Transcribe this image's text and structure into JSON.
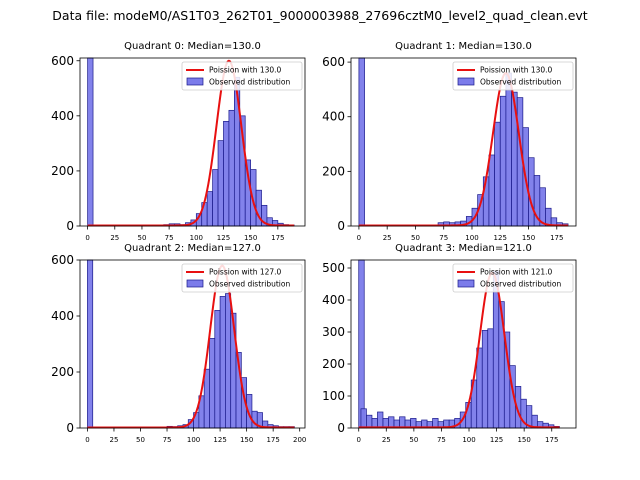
{
  "figure_title": "Data file: modeM0/AS1T03_262T01_9000003988_27696cztM0_level2_quad_clean.evt",
  "colors": {
    "bar_fill": "#7b7bea",
    "bar_edge": "#1a1a8a",
    "curve": "#e81010"
  },
  "chart_data": [
    {
      "type": "bar",
      "title": "Quadrant 0: Median=130.0",
      "xlim": [
        -7,
        200
      ],
      "ylim": [
        0,
        610
      ],
      "xticks": [
        0,
        25,
        50,
        75,
        100,
        125,
        150,
        175
      ],
      "yticks": [
        0,
        200,
        400,
        600
      ],
      "bin_width": 5,
      "bars": [
        [
          0,
          610
        ],
        [
          70,
          5
        ],
        [
          75,
          8
        ],
        [
          80,
          8
        ],
        [
          85,
          5
        ],
        [
          90,
          12
        ],
        [
          95,
          22
        ],
        [
          100,
          45
        ],
        [
          105,
          85
        ],
        [
          110,
          125
        ],
        [
          115,
          205
        ],
        [
          120,
          310
        ],
        [
          125,
          380
        ],
        [
          130,
          420
        ],
        [
          135,
          540
        ],
        [
          140,
          400
        ],
        [
          145,
          240
        ],
        [
          150,
          205
        ],
        [
          155,
          130
        ],
        [
          160,
          75
        ],
        [
          165,
          30
        ],
        [
          170,
          20
        ],
        [
          175,
          10
        ],
        [
          180,
          5
        ],
        [
          185,
          4
        ]
      ],
      "curve": {
        "type": "gaussian",
        "mean": 130,
        "peak": 600,
        "sigma": 11.4,
        "baseline": 2,
        "range": [
          0,
          190
        ]
      },
      "legend": {
        "curve_label": "Poission with 130.0",
        "bars_label": "Observed distribution",
        "position": "top-right"
      }
    },
    {
      "type": "bar",
      "title": "Quadrant 1: Median=130.0",
      "xlim": [
        -7,
        192
      ],
      "ylim": [
        0,
        615
      ],
      "xticks": [
        0,
        25,
        50,
        75,
        100,
        125,
        150,
        175
      ],
      "yticks": [
        0,
        200,
        400,
        600
      ],
      "bin_width": 5,
      "bars": [
        [
          0,
          615
        ],
        [
          70,
          12
        ],
        [
          75,
          15
        ],
        [
          80,
          12
        ],
        [
          85,
          15
        ],
        [
          90,
          18
        ],
        [
          95,
          35
        ],
        [
          100,
          65
        ],
        [
          105,
          115
        ],
        [
          110,
          180
        ],
        [
          115,
          260
        ],
        [
          120,
          380
        ],
        [
          125,
          475
        ],
        [
          130,
          560
        ],
        [
          135,
          490
        ],
        [
          140,
          470
        ],
        [
          145,
          360
        ],
        [
          150,
          250
        ],
        [
          155,
          185
        ],
        [
          160,
          140
        ],
        [
          165,
          65
        ],
        [
          170,
          30
        ],
        [
          175,
          12
        ],
        [
          180,
          8
        ]
      ],
      "curve": {
        "type": "gaussian",
        "mean": 130,
        "peak": 560,
        "sigma": 11.4,
        "baseline": 2,
        "range": [
          0,
          185
        ]
      },
      "legend": {
        "curve_label": "Poission with 130.0",
        "bars_label": "Observed distribution",
        "position": "top-right"
      }
    },
    {
      "type": "bar",
      "title": "Quadrant 2: Median=127.0",
      "xlim": [
        -7,
        205
      ],
      "ylim": [
        0,
        600
      ],
      "xticks": [
        0,
        25,
        50,
        75,
        100,
        125,
        150,
        175,
        200
      ],
      "yticks": [
        0,
        200,
        400,
        600
      ],
      "bin_width": 5,
      "bars": [
        [
          0,
          600
        ],
        [
          70,
          4
        ],
        [
          75,
          6
        ],
        [
          80,
          5
        ],
        [
          85,
          8
        ],
        [
          90,
          12
        ],
        [
          95,
          30
        ],
        [
          100,
          55
        ],
        [
          105,
          115
        ],
        [
          110,
          210
        ],
        [
          115,
          320
        ],
        [
          120,
          420
        ],
        [
          125,
          470
        ],
        [
          130,
          480
        ],
        [
          135,
          410
        ],
        [
          140,
          270
        ],
        [
          145,
          180
        ],
        [
          150,
          120
        ],
        [
          155,
          60
        ],
        [
          160,
          55
        ],
        [
          165,
          25
        ],
        [
          170,
          12
        ],
        [
          175,
          8
        ],
        [
          180,
          5
        ],
        [
          185,
          5
        ],
        [
          190,
          5
        ]
      ],
      "curve": {
        "type": "gaussian",
        "mean": 127,
        "peak": 580,
        "sigma": 11.3,
        "baseline": 2,
        "range": [
          0,
          195
        ]
      },
      "legend": {
        "curve_label": "Poission with 127.0",
        "bars_label": "Observed distribution",
        "position": "top-right"
      }
    },
    {
      "type": "bar",
      "title": "Quadrant 3: Median=121.0",
      "xlim": [
        -7,
        197
      ],
      "ylim": [
        0,
        525
      ],
      "xticks": [
        0,
        25,
        50,
        75,
        100,
        125,
        150,
        175
      ],
      "yticks": [
        0,
        100,
        200,
        300,
        400,
        500
      ],
      "bin_width": 5,
      "bars": [
        [
          0,
          525
        ],
        [
          2,
          60
        ],
        [
          7,
          40
        ],
        [
          12,
          30
        ],
        [
          17,
          50
        ],
        [
          22,
          30
        ],
        [
          27,
          35
        ],
        [
          32,
          25
        ],
        [
          37,
          35
        ],
        [
          42,
          25
        ],
        [
          47,
          30
        ],
        [
          52,
          20
        ],
        [
          57,
          25
        ],
        [
          62,
          20
        ],
        [
          67,
          30
        ],
        [
          72,
          20
        ],
        [
          77,
          25
        ],
        [
          82,
          25
        ],
        [
          87,
          30
        ],
        [
          92,
          50
        ],
        [
          97,
          80
        ],
        [
          102,
          150
        ],
        [
          107,
          250
        ],
        [
          112,
          305
        ],
        [
          117,
          310
        ],
        [
          122,
          490
        ],
        [
          127,
          395
        ],
        [
          132,
          300
        ],
        [
          137,
          195
        ],
        [
          142,
          130
        ],
        [
          147,
          90
        ],
        [
          152,
          70
        ],
        [
          157,
          40
        ],
        [
          162,
          20
        ],
        [
          167,
          15
        ],
        [
          172,
          10
        ],
        [
          177,
          5
        ]
      ],
      "curve": {
        "type": "gaussian",
        "mean": 121,
        "peak": 485,
        "sigma": 11.0,
        "baseline": 2,
        "range": [
          0,
          182
        ]
      },
      "legend": {
        "curve_label": "Poission with 121.0",
        "bars_label": "Observed distribution",
        "position": "top-right"
      }
    }
  ]
}
